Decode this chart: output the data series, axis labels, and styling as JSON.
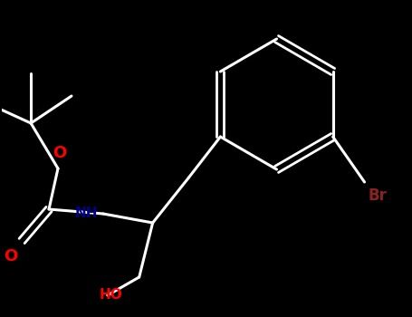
{
  "bg_color": "#000000",
  "bond_color": "white",
  "atom_colors": {
    "O": "#ff0000",
    "N": "#00008b",
    "Br": "#8b2222",
    "C": "white"
  },
  "figsize": [
    4.55,
    3.5
  ],
  "dpi": 100,
  "xlim": [
    0,
    455
  ],
  "ylim": [
    0,
    350
  ]
}
